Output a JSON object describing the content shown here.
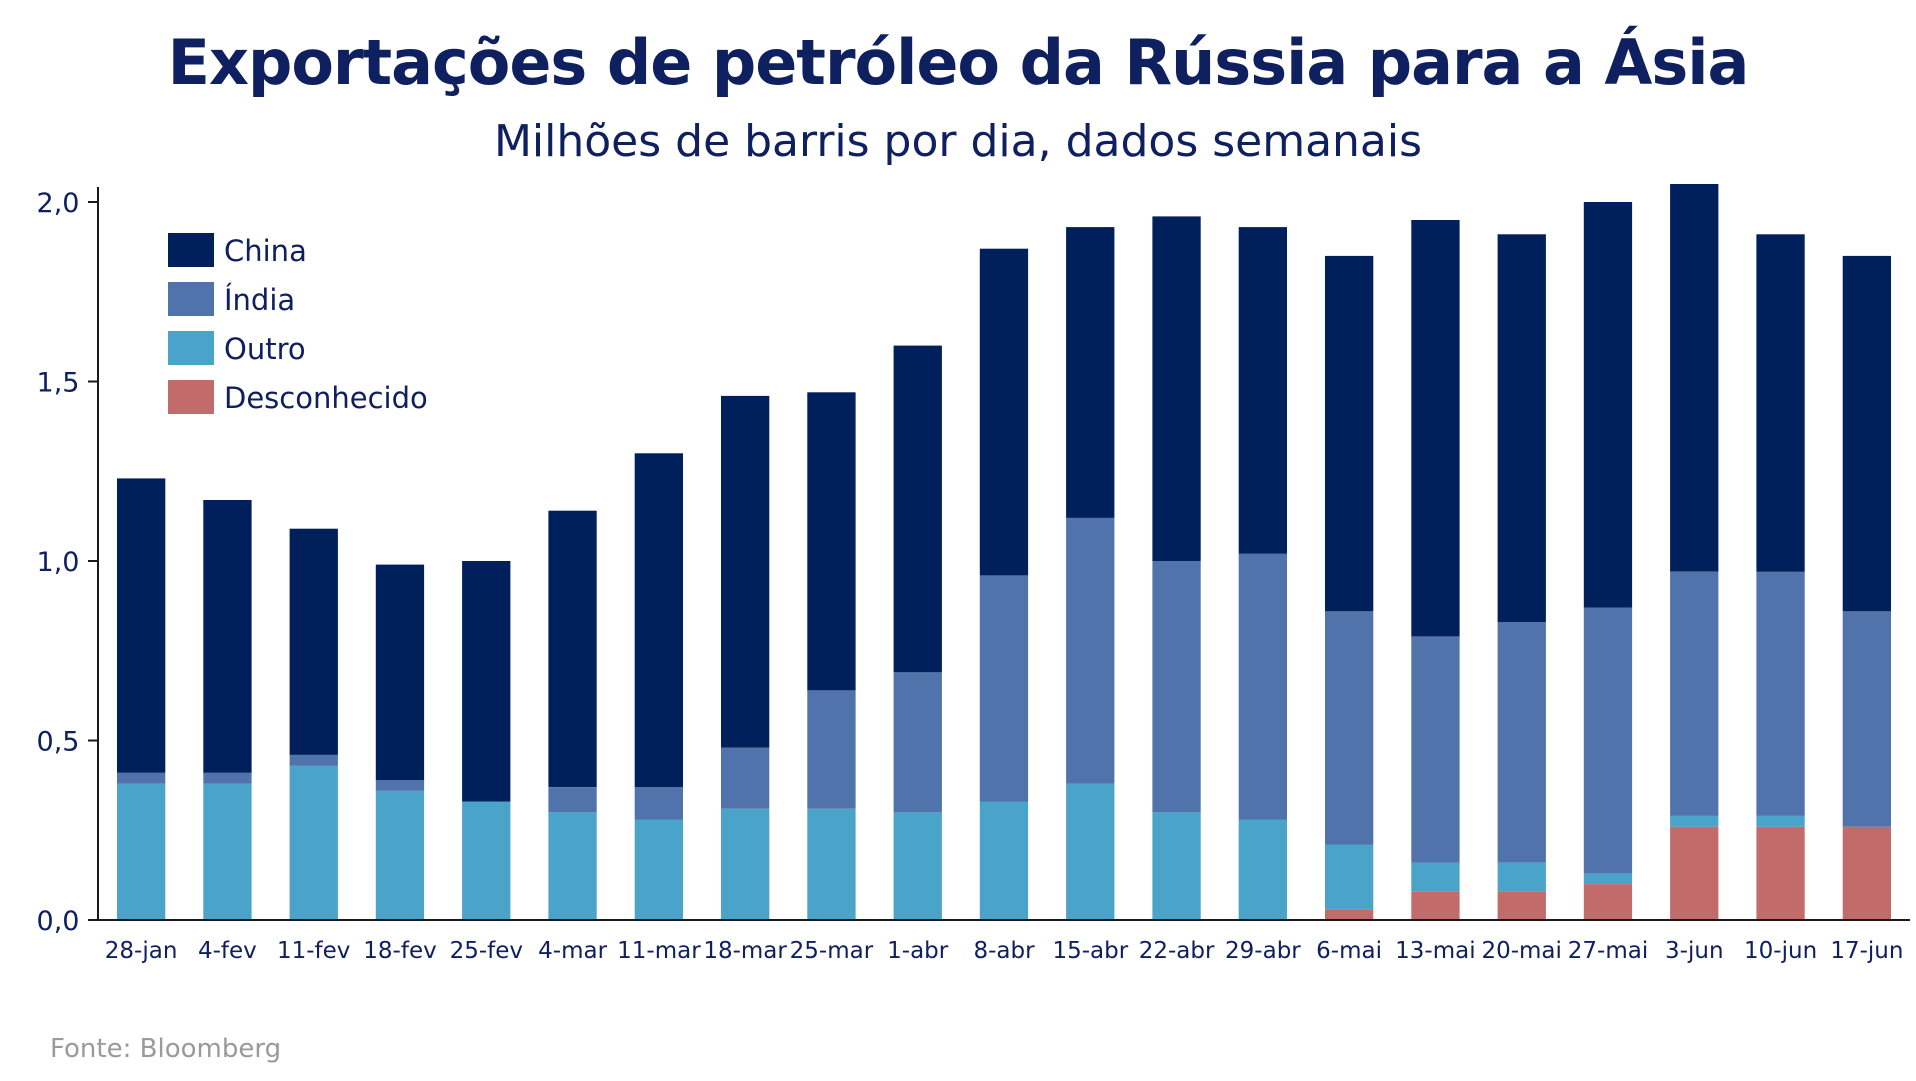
{
  "title": "Exportações de petróleo da Rússia para a Ásia",
  "subtitle": "Milhões de barris por dia, dados semanais",
  "source": "Fonte: Bloomberg",
  "chart_data": {
    "type": "bar",
    "stacked": true,
    "categories": [
      "28-jan",
      "4-fev",
      "11-fev",
      "18-fev",
      "25-fev",
      "4-mar",
      "11-mar",
      "18-mar",
      "25-mar",
      "1-abr",
      "8-abr",
      "15-abr",
      "22-abr",
      "29-abr",
      "6-mai",
      "13-mai",
      "20-mai",
      "27-mai",
      "3-jun",
      "10-jun",
      "17-jun"
    ],
    "series": [
      {
        "name": "Desconhecido",
        "color": "#c16b6b",
        "values": [
          0,
          0,
          0,
          0,
          0,
          0,
          0,
          0,
          0,
          0,
          0,
          0,
          0,
          0,
          0.03,
          0.08,
          0.08,
          0.1,
          0.26,
          0.26,
          0.26
        ]
      },
      {
        "name": "Outro",
        "color": "#4aa3c8",
        "values": [
          0.38,
          0.38,
          0.43,
          0.36,
          0.33,
          0.3,
          0.28,
          0.31,
          0.31,
          0.3,
          0.33,
          0.38,
          0.3,
          0.28,
          0.18,
          0.08,
          0.08,
          0.03,
          0.03,
          0.03,
          0
        ]
      },
      {
        "name": "Índia",
        "color": "#5173ab",
        "values": [
          0.03,
          0.03,
          0.03,
          0.03,
          0,
          0.07,
          0.09,
          0.17,
          0.33,
          0.39,
          0.63,
          0.74,
          0.7,
          0.74,
          0.65,
          0.63,
          0.67,
          0.74,
          0.68,
          0.68,
          0.6
        ]
      },
      {
        "name": "China",
        "color": "#00205c",
        "values": [
          0.82,
          0.76,
          0.63,
          0.6,
          0.67,
          0.77,
          0.93,
          0.98,
          0.83,
          0.91,
          0.91,
          0.81,
          0.96,
          0.91,
          0.99,
          1.16,
          1.08,
          1.13,
          1.08,
          0.94,
          0.99
        ]
      }
    ],
    "legend_order": [
      "China",
      "Índia",
      "Outro",
      "Desconhecido"
    ],
    "legend_position": "top-left",
    "yticks": [
      "0,0",
      "0,5",
      "1,0",
      "1,5",
      "2,0"
    ],
    "ytick_values": [
      0,
      0.5,
      1.0,
      1.5,
      2.0
    ],
    "ylim": [
      0,
      2.0
    ],
    "xlabel": "",
    "ylabel": "",
    "grid": false
  }
}
